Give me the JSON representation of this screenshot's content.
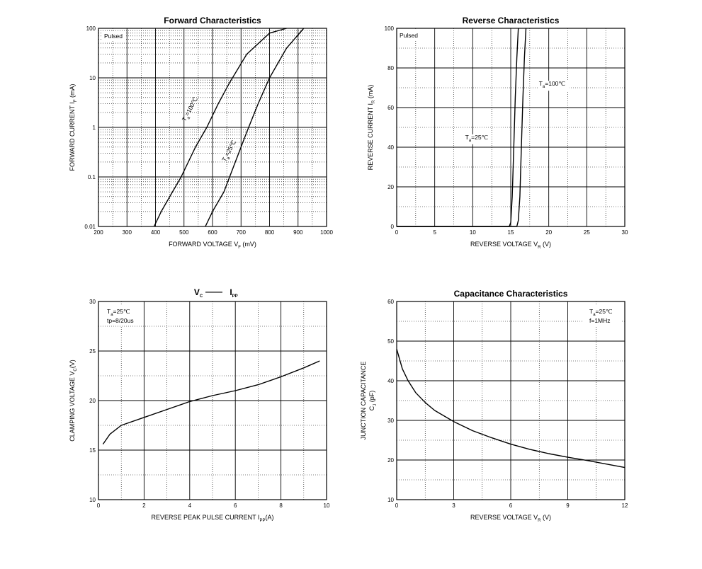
{
  "chart_data": [
    {
      "id": "forward",
      "type": "line",
      "title": "Forward   Characteristics",
      "xlabel": "FORWARD VOLTAGE   V",
      "xlabel_sub": "F",
      "xlabel_unit": "   (mV)",
      "ylabel": "FORWARD CURRENT   I",
      "ylabel_sub": "F",
      "ylabel_unit": "   (mA)",
      "y_scale": "log",
      "xlim": [
        200,
        1000
      ],
      "ylim": [
        0.01,
        100
      ],
      "x_ticks": [
        "200",
        "300",
        "400",
        "500",
        "600",
        "700",
        "800",
        "900",
        "1000"
      ],
      "y_ticks": [
        "0.01",
        "0.1",
        "1",
        "10",
        "100"
      ],
      "note": "Pulsed",
      "series": [
        {
          "name": "T",
          "name_sub": "a",
          "name_tail": "=100℃",
          "x": [
            395,
            420,
            450,
            490,
            540,
            580,
            620,
            660,
            720,
            800,
            860
          ],
          "y": [
            0.01,
            0.02,
            0.04,
            0.1,
            0.4,
            1.0,
            3.0,
            8.0,
            30,
            80,
            100
          ]
        },
        {
          "name": "T",
          "name_sub": "a",
          "name_tail": "=25℃",
          "x": [
            575,
            600,
            640,
            680,
            720,
            760,
            800,
            860,
            920
          ],
          "y": [
            0.01,
            0.02,
            0.05,
            0.2,
            0.8,
            3.0,
            10,
            40,
            100
          ]
        }
      ]
    },
    {
      "id": "reverse",
      "type": "line",
      "title": "Reverse   Characteristics",
      "xlabel": "REVERSE VOLTAGE   V",
      "xlabel_sub": "R",
      "xlabel_unit": "   (V)",
      "ylabel": "REVERSE CURRENT   I",
      "ylabel_sub": "R",
      "ylabel_unit": "   (mA)",
      "xlim": [
        0,
        30
      ],
      "ylim": [
        0,
        100
      ],
      "x_ticks": [
        "0",
        "5",
        "10",
        "15",
        "20",
        "25",
        "30"
      ],
      "y_ticks": [
        "0",
        "20",
        "40",
        "60",
        "80",
        "100"
      ],
      "note": "Pulsed",
      "series": [
        {
          "name": "T",
          "name_sub": "a",
          "name_tail": "=25℃",
          "x": [
            0,
            14.8,
            15.0,
            15.2,
            15.4,
            15.6,
            15.8,
            16.0
          ],
          "y": [
            0,
            0,
            2,
            15,
            40,
            65,
            85,
            100
          ]
        },
        {
          "name": "T",
          "name_sub": "a",
          "name_tail": "=100℃",
          "x": [
            0,
            15.8,
            16.0,
            16.2,
            16.4,
            16.6,
            16.8,
            17.0
          ],
          "y": [
            0,
            0,
            3,
            15,
            40,
            65,
            85,
            100
          ]
        }
      ]
    },
    {
      "id": "vc_ipp",
      "type": "line",
      "title": "V",
      "title_sub1": "C",
      "title_mid": "——",
      "title2": "I",
      "title_sub2": "PP",
      "xlabel": "REVERSE PEAK PULSE CURRENT   I",
      "xlabel_sub": "PP",
      "xlabel_unit": "(A)",
      "ylabel": "CLAMPING VOLTAGE  V",
      "ylabel_sub": "C",
      "ylabel_unit": "(V)",
      "xlim": [
        0,
        10
      ],
      "ylim": [
        10,
        30
      ],
      "x_ticks": [
        "0",
        "2",
        "4",
        "6",
        "8",
        "10"
      ],
      "y_ticks": [
        "10",
        "15",
        "20",
        "25",
        "30"
      ],
      "note_lines": [
        "T",
        "a",
        "=25℃",
        "tp=8/20us"
      ],
      "series": [
        {
          "x": [
            0.2,
            0.5,
            1.0,
            2.0,
            3.0,
            4.0,
            5.0,
            6.0,
            7.0,
            8.0,
            9.0,
            9.7
          ],
          "y": [
            15.6,
            16.6,
            17.5,
            18.3,
            19.1,
            19.9,
            20.5,
            21.0,
            21.6,
            22.4,
            23.3,
            24.0
          ]
        }
      ]
    },
    {
      "id": "capacitance",
      "type": "line",
      "title": "Capacitance Characteristics",
      "xlabel": "REVERSE VOLTAGE   V",
      "xlabel_sub": "R",
      "xlabel_unit": "   (V)",
      "ylabel_line1": "JUNCTION CAPACITANCE",
      "ylabel": "C",
      "ylabel_sub": "J",
      "ylabel_unit": "  (pF)",
      "xlim": [
        0,
        12
      ],
      "ylim": [
        10,
        60
      ],
      "x_ticks": [
        "0",
        "3",
        "6",
        "9",
        "12"
      ],
      "y_ticks": [
        "10",
        "20",
        "30",
        "40",
        "50",
        "60"
      ],
      "note_lines": [
        "T",
        "a",
        "=25℃",
        "f=1MHz"
      ],
      "series": [
        {
          "x": [
            0,
            0.3,
            0.6,
            1.0,
            1.5,
            2.0,
            3.0,
            4.0,
            5.0,
            6.0,
            7.0,
            8.0,
            9.0,
            10.0,
            11.0,
            12.0
          ],
          "y": [
            48,
            43,
            40,
            37,
            34.5,
            32.5,
            29.7,
            27.4,
            25.6,
            24.0,
            22.7,
            21.6,
            20.7,
            19.9,
            19.0,
            18.1
          ]
        }
      ]
    }
  ]
}
